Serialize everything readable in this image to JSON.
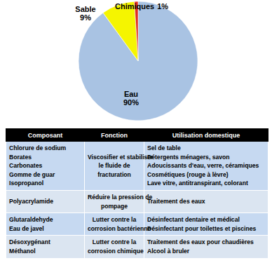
{
  "chart_data": {
    "type": "pie",
    "categories": [
      "Eau",
      "Sable",
      "Chimiques"
    ],
    "values": [
      90,
      9,
      1
    ],
    "value_labels": [
      "90%",
      "9%",
      "1%"
    ],
    "colors": [
      "#a9c3e3",
      "#f5f500",
      "#e02a1c"
    ],
    "data_labels": true
  },
  "table": {
    "header": [
      "Composant",
      "Fonction",
      "Utilisation domestique"
    ],
    "rows": [
      [
        [
          "Chlorure de sodium",
          "Borates",
          "Carbonates",
          "Gomme de guar",
          "Isopropanol"
        ],
        [
          "Viscosifier et stabiliser",
          "le fluide de",
          "fracturation"
        ],
        [
          "Sel de table",
          "Détergents ménagers, savon",
          "Adoucissants d'eau, verre, céramiques",
          "Cosmétiques (rouge à lèvre)",
          "Lave vitre, antitranspirant, colorant"
        ]
      ],
      [
        [
          "Polyacrylamide"
        ],
        [
          "Réduire la pression de",
          "pompage"
        ],
        [
          "Traitement des eaux"
        ]
      ],
      [
        [
          "Glutaraldehyde",
          "Eau de javel"
        ],
        [
          "Lutter contre la",
          "corrosion bactérienne"
        ],
        [
          "Désinfectant dentaire et médical",
          "Désinfectant pour toilettes et piscines"
        ]
      ],
      [
        [
          "Désoxygénant",
          "Méthanol"
        ],
        [
          "Lutter contre la",
          "corrosion chimique"
        ],
        [
          "Traitement des eaux pour chaudières",
          "Alcool à bruler"
        ]
      ]
    ]
  }
}
